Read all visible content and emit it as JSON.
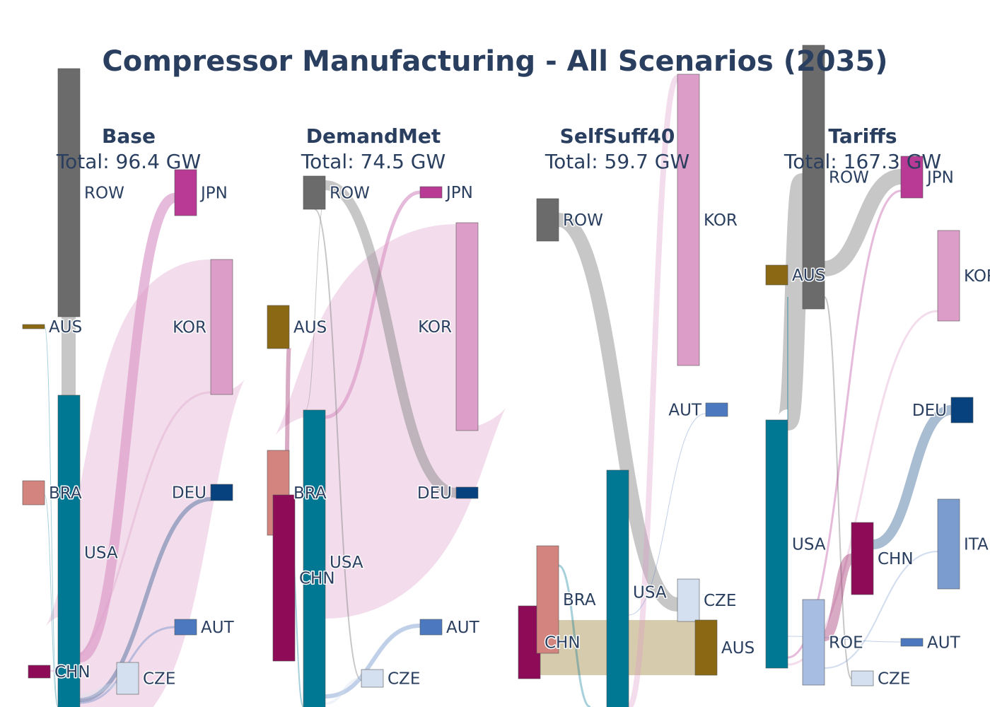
{
  "colors": {
    "AUS": "#8b6914",
    "AUT": "#4c78c0",
    "BRA": "#d3847e",
    "CHN": "#8e0c57",
    "CZE": "#d4e0ef",
    "DEU": "#08427e",
    "ITA": "#7b9ccf",
    "JPN": "#b83a94",
    "KOR": "#dc9dc8",
    "ROE": "#a7bde1",
    "ROW": "#6b6b6b",
    "USA": "#007894"
  },
  "chart_data": {
    "type": "sankey",
    "title": "Compressor Manufacturing - All Scenarios (2035)",
    "unit": "GW",
    "panels": [
      {
        "name": "Base",
        "total_label": "Total: 96.4 GW",
        "total": 96.4,
        "producers": [
          "ROW",
          "AUS",
          "BRA",
          "USA",
          "CHN"
        ],
        "consumers": [
          "JPN",
          "KOR",
          "DEU",
          "AUT",
          "CZE"
        ],
        "flows": [
          {
            "source": "ROW",
            "target": "USA",
            "value": 4.5
          },
          {
            "source": "AUS",
            "target": "USA",
            "value": 0.2
          },
          {
            "source": "BRA",
            "target": "USA",
            "value": 0.3
          },
          {
            "source": "USA",
            "target": "JPN",
            "value": 4.0
          },
          {
            "source": "USA",
            "target": "KOR",
            "value": 24.0
          },
          {
            "source": "USA",
            "target": "DEU",
            "value": 0.3
          },
          {
            "source": "USA",
            "target": "AUT",
            "value": 0.2
          },
          {
            "source": "USA",
            "target": "CZE",
            "value": 0.6
          },
          {
            "source": "CHN",
            "target": "KOR",
            "value": 0.3
          }
        ]
      },
      {
        "name": "DemandMet",
        "total_label": "Total: 74.5 GW",
        "total": 74.5,
        "producers": [
          "ROW",
          "AUS",
          "BRA",
          "CHN",
          "USA"
        ],
        "consumers": [
          "JPN",
          "KOR",
          "DEU",
          "AUT",
          "CZE"
        ],
        "flows": [
          {
            "source": "ROW",
            "target": "DEU",
            "value": 2.0
          },
          {
            "source": "ROW",
            "target": "CZE",
            "value": 0.3
          },
          {
            "source": "ROW",
            "target": "USA",
            "value": 0.1
          },
          {
            "source": "AUS",
            "target": "CHN",
            "value": 0.5
          },
          {
            "source": "BRA",
            "target": "USA",
            "value": 0.3
          },
          {
            "source": "USA",
            "target": "JPN",
            "value": 1.0
          },
          {
            "source": "USA",
            "target": "KOR",
            "value": 37.0
          },
          {
            "source": "USA",
            "target": "AUT",
            "value": 0.3
          },
          {
            "source": "USA",
            "target": "CZE",
            "value": 0.3
          }
        ]
      },
      {
        "name": "SelfSuff40",
        "total_label": "Total: 59.7 GW",
        "total": 59.7,
        "producers": [
          "ROW",
          "CHN",
          "BRA",
          "USA"
        ],
        "consumers": [
          "KOR",
          "AUT",
          "CZE",
          "AUS"
        ],
        "flows": [
          {
            "source": "ROW",
            "target": "CZE",
            "value": 5.0
          },
          {
            "source": "CHN",
            "target": "AUS",
            "value": 6.5
          },
          {
            "source": "BRA",
            "target": "USA",
            "value": 0.5
          },
          {
            "source": "USA",
            "target": "KOR",
            "value": 3.0
          },
          {
            "source": "USA",
            "target": "AUT",
            "value": 0.1
          }
        ]
      },
      {
        "name": "Tariffs",
        "total_label": "Total: 167.3 GW",
        "total": 167.3,
        "producers": [
          "ROW",
          "AUS",
          "USA",
          "ROE"
        ],
        "consumers": [
          "JPN",
          "KOR",
          "DEU",
          "CHN",
          "ITA",
          "AUT",
          "CZE"
        ],
        "flows": [
          {
            "source": "ROW",
            "target": "USA",
            "value": 6.0
          },
          {
            "source": "ROW",
            "target": "JPN",
            "value": 3.0
          },
          {
            "source": "ROW",
            "target": "CZE",
            "value": 0.3
          },
          {
            "source": "USA",
            "target": "JPN",
            "value": 0.3
          },
          {
            "source": "USA",
            "target": "KOR",
            "value": 0.3
          },
          {
            "source": "ROE",
            "target": "CHN",
            "value": 2.0
          },
          {
            "source": "CHN",
            "target": "DEU",
            "value": 3.0
          },
          {
            "source": "ROE",
            "target": "ITA",
            "value": 0.3
          }
        ]
      }
    ]
  }
}
